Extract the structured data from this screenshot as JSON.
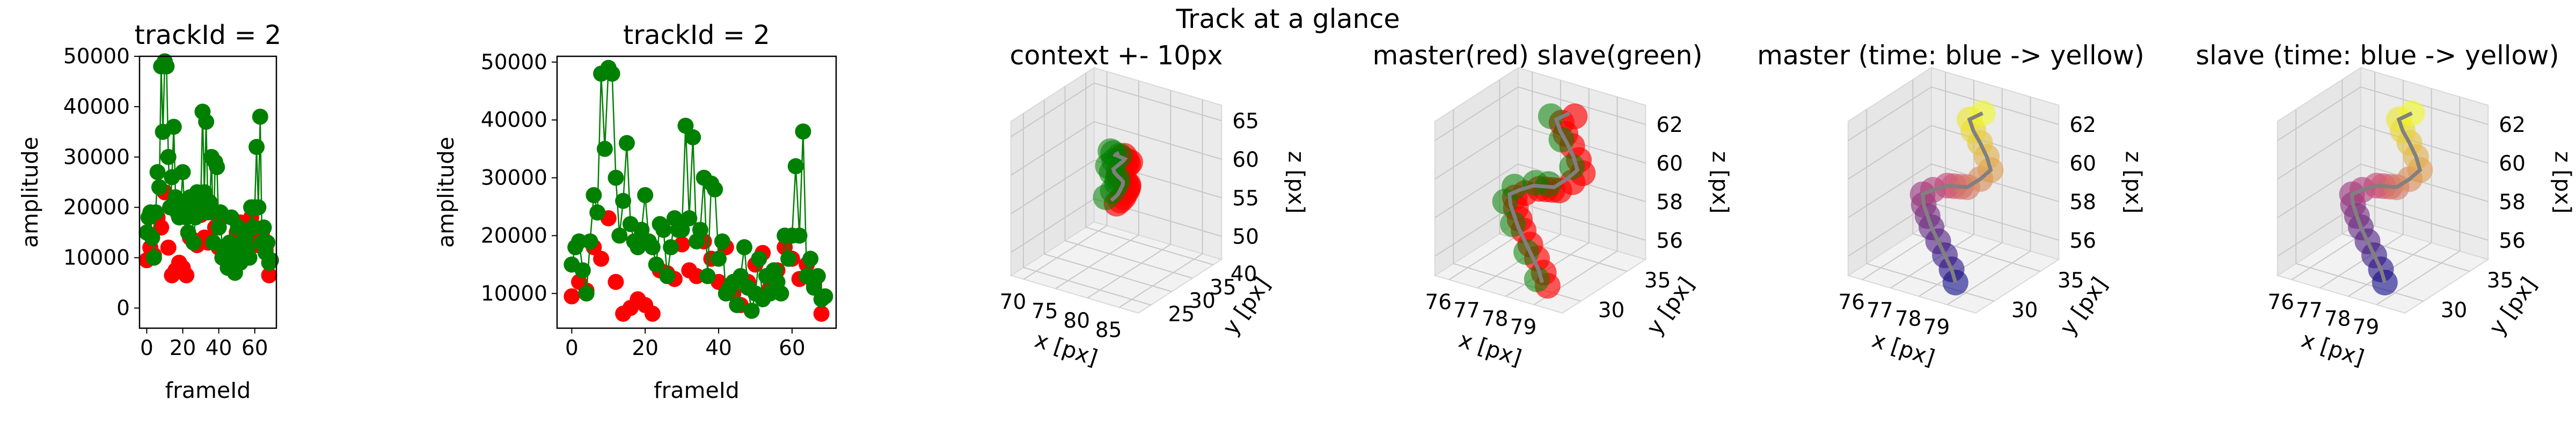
{
  "suptitle": "Track at a glance",
  "colors": {
    "master": "#ff0000",
    "slave": "#008000",
    "track_line": "#808080",
    "time_start": "#0d0887",
    "time_mid": "#cc4778",
    "time_end": "#f0f921"
  },
  "chart_data": [
    {
      "type": "scatter",
      "title": "trackId = 2",
      "xlabel": "frameId",
      "ylabel": "amplitude",
      "xlim": [
        -4,
        72
      ],
      "ylim": [
        -4000,
        50000
      ],
      "xticks": [
        0,
        20,
        40,
        60
      ],
      "yticks": [
        0,
        10000,
        20000,
        30000,
        40000,
        50000
      ],
      "grid": false,
      "series": [
        {
          "color": "#ff0000",
          "line": false,
          "x": [
            0,
            2,
            4,
            6,
            8,
            10,
            12,
            14,
            16,
            18,
            20,
            22,
            24,
            26,
            28,
            30,
            32,
            34,
            36,
            38,
            40,
            42,
            44,
            46,
            48,
            50,
            52,
            54,
            56,
            58,
            60,
            62,
            64,
            66,
            68
          ],
          "y": [
            9500,
            12000,
            10500,
            18000,
            16000,
            23000,
            12000,
            6500,
            7500,
            9000,
            8000,
            6500,
            14000,
            13500,
            12500,
            18500,
            14000,
            13000,
            19000,
            16000,
            12000,
            18000,
            10000,
            8000,
            12000,
            15000,
            17000,
            11000,
            14000,
            18000,
            16000,
            12500,
            15000,
            11500,
            6500
          ]
        },
        {
          "color": "#008000",
          "line": true,
          "x": [
            0,
            1,
            2,
            3,
            4,
            5,
            6,
            7,
            8,
            9,
            10,
            11,
            12,
            13,
            14,
            15,
            16,
            17,
            18,
            19,
            20,
            21,
            22,
            23,
            24,
            25,
            26,
            27,
            28,
            29,
            30,
            31,
            32,
            33,
            34,
            35,
            36,
            37,
            38,
            39,
            40,
            41,
            42,
            43,
            44,
            45,
            46,
            47,
            48,
            49,
            50,
            51,
            52,
            53,
            54,
            55,
            56,
            57,
            58,
            59,
            60,
            61,
            62,
            63,
            64,
            65,
            66,
            67,
            68,
            69
          ],
          "y": [
            15000,
            18000,
            19000,
            14000,
            10000,
            19000,
            27000,
            24000,
            48000,
            35000,
            49000,
            48000,
            30000,
            20000,
            26000,
            36000,
            22000,
            19000,
            18000,
            21000,
            27000,
            19000,
            18000,
            15000,
            22000,
            21000,
            13000,
            18000,
            23000,
            21000,
            21000,
            39000,
            23000,
            37000,
            19000,
            21000,
            30000,
            13000,
            29000,
            28000,
            16000,
            19000,
            10000,
            11000,
            12000,
            8000,
            13000,
            18000,
            11000,
            7000,
            10000,
            16000,
            9000,
            13000,
            10000,
            14000,
            12000,
            10000,
            20000,
            16000,
            20000,
            32000,
            20000,
            38000,
            13000,
            16000,
            11000,
            13000,
            9000,
            9500
          ]
        }
      ]
    },
    {
      "type": "scatter",
      "title": "trackId = 2",
      "xlabel": "frameId",
      "ylabel": "amplitude",
      "xlim": [
        -4,
        72
      ],
      "ylim": [
        4000,
        51000
      ],
      "xticks": [
        0,
        20,
        40,
        60
      ],
      "yticks": [
        10000,
        20000,
        30000,
        40000,
        50000
      ],
      "grid": false,
      "series": [
        {
          "color": "#ff0000",
          "line": false,
          "x": [
            0,
            2,
            4,
            6,
            8,
            10,
            12,
            14,
            16,
            18,
            20,
            22,
            24,
            26,
            28,
            30,
            32,
            34,
            36,
            38,
            40,
            42,
            44,
            46,
            48,
            50,
            52,
            54,
            56,
            58,
            60,
            62,
            64,
            66,
            68
          ],
          "y": [
            9500,
            12000,
            10500,
            18000,
            16000,
            23000,
            12000,
            6500,
            7500,
            9000,
            8000,
            6500,
            14000,
            13500,
            12500,
            18500,
            14000,
            13000,
            19000,
            16000,
            12000,
            18000,
            10000,
            8000,
            12000,
            15000,
            17000,
            11000,
            14000,
            18000,
            16000,
            12500,
            15000,
            11500,
            6500
          ]
        },
        {
          "color": "#008000",
          "line": true,
          "x": [
            0,
            1,
            2,
            3,
            4,
            5,
            6,
            7,
            8,
            9,
            10,
            11,
            12,
            13,
            14,
            15,
            16,
            17,
            18,
            19,
            20,
            21,
            22,
            23,
            24,
            25,
            26,
            27,
            28,
            29,
            30,
            31,
            32,
            33,
            34,
            35,
            36,
            37,
            38,
            39,
            40,
            41,
            42,
            43,
            44,
            45,
            46,
            47,
            48,
            49,
            50,
            51,
            52,
            53,
            54,
            55,
            56,
            57,
            58,
            59,
            60,
            61,
            62,
            63,
            64,
            65,
            66,
            67,
            68,
            69
          ],
          "y": [
            15000,
            18000,
            19000,
            14000,
            10000,
            19000,
            27000,
            24000,
            48000,
            35000,
            49000,
            48000,
            30000,
            20000,
            26000,
            36000,
            22000,
            19000,
            18000,
            21000,
            27000,
            19000,
            18000,
            15000,
            22000,
            21000,
            13000,
            18000,
            23000,
            21000,
            21000,
            39000,
            23000,
            37000,
            19000,
            21000,
            30000,
            13000,
            29000,
            28000,
            16000,
            19000,
            10000,
            11000,
            12000,
            8000,
            13000,
            18000,
            11000,
            7000,
            10000,
            16000,
            9000,
            13000,
            10000,
            14000,
            12000,
            10000,
            20000,
            16000,
            20000,
            32000,
            20000,
            38000,
            13000,
            16000,
            11000,
            13000,
            9000,
            9500
          ]
        }
      ]
    },
    {
      "type": "scatter",
      "title": "context +- 10px",
      "xlabel": "x [px]",
      "ylabel": "y [px]",
      "zlabel": "z [px]",
      "xlim": [
        68,
        88
      ],
      "ylim": [
        22,
        42
      ],
      "zlim": [
        47,
        67
      ],
      "xticks": [
        70,
        75,
        80,
        85
      ],
      "yticks": [
        25,
        30,
        35,
        40
      ],
      "zticks": [
        50,
        55,
        60,
        65
      ],
      "grid": true,
      "color_mode": "master_slave",
      "track": {
        "x": [
          77.2,
          77.6,
          77.9,
          78.1,
          78.3,
          78.6,
          78.8,
          78.5,
          78.2,
          77.9,
          77.6,
          77.9,
          78.2,
          78.5,
          78.7,
          78.4,
          78.1,
          77.8,
          78.0,
          78.3
        ],
        "y": [
          32.0,
          32.3,
          32.6,
          32.8,
          33.0,
          32.7,
          32.4,
          32.2,
          31.9,
          31.7,
          31.9,
          32.2,
          32.5,
          32.8,
          33.0,
          32.7,
          32.4,
          32.1,
          31.9,
          32.2
        ],
        "z": [
          55.5,
          55.9,
          56.3,
          56.8,
          57.3,
          57.8,
          58.2,
          58.6,
          59.0,
          59.4,
          59.7,
          60.0,
          60.3,
          60.6,
          60.9,
          61.1,
          61.3,
          61.5,
          61.7,
          61.9
        ]
      }
    },
    {
      "type": "scatter",
      "title": "master(red) slave(green)",
      "xlabel": "x [px]",
      "ylabel": "y [px]",
      "zlabel": "z [px]",
      "xlim": [
        75.5,
        80
      ],
      "ylim": [
        28,
        37
      ],
      "zlim": [
        55,
        63
      ],
      "xticks": [
        76,
        77,
        78,
        79
      ],
      "yticks": [
        30,
        35
      ],
      "zticks": [
        56,
        58,
        60,
        62
      ],
      "grid": true,
      "color_mode": "master_slave",
      "track": {
        "x": [
          78.8,
          78.5,
          78.1,
          77.7,
          77.3,
          77.0,
          76.7,
          76.5,
          76.8,
          77.2,
          77.6,
          78.0,
          78.4,
          78.7,
          78.9,
          78.6,
          78.2,
          77.8,
          77.5,
          77.8
        ],
        "y": [
          29.5,
          30.0,
          30.5,
          31.0,
          31.5,
          32.0,
          32.5,
          33.0,
          33.2,
          33.5,
          33.0,
          32.5,
          32.0,
          32.5,
          33.0,
          33.5,
          34.0,
          34.5,
          35.0,
          35.5
        ],
        "z": [
          55.6,
          56.0,
          56.4,
          56.8,
          57.2,
          57.5,
          57.8,
          58.1,
          58.4,
          58.7,
          59.0,
          59.3,
          59.6,
          60.0,
          60.4,
          60.8,
          61.2,
          61.5,
          61.8,
          62.1
        ]
      }
    },
    {
      "type": "scatter",
      "title": "master (time: blue -> yellow)",
      "xlabel": "x [px]",
      "ylabel": "y [px]",
      "zlabel": "z [px]",
      "xlim": [
        75.5,
        80
      ],
      "ylim": [
        28,
        37
      ],
      "zlim": [
        55,
        63
      ],
      "xticks": [
        76,
        77,
        78,
        79
      ],
      "yticks": [
        30,
        35
      ],
      "zticks": [
        56,
        58,
        60,
        62
      ],
      "grid": true,
      "color_mode": "time",
      "track": {
        "x": [
          78.8,
          78.5,
          78.1,
          77.7,
          77.3,
          77.0,
          76.7,
          76.5,
          76.8,
          77.2,
          77.6,
          78.0,
          78.4,
          78.7,
          78.9,
          78.6,
          78.2,
          77.8,
          77.5,
          77.8
        ],
        "y": [
          29.5,
          30.0,
          30.5,
          31.0,
          31.5,
          32.0,
          32.5,
          33.0,
          33.2,
          33.5,
          33.0,
          32.5,
          32.0,
          32.5,
          33.0,
          33.5,
          34.0,
          34.5,
          35.0,
          35.5
        ],
        "z": [
          55.6,
          56.0,
          56.4,
          56.8,
          57.2,
          57.5,
          57.8,
          58.1,
          58.4,
          58.7,
          59.0,
          59.3,
          59.6,
          60.0,
          60.4,
          60.8,
          61.2,
          61.5,
          61.8,
          62.1
        ]
      }
    },
    {
      "type": "scatter",
      "title": "slave (time: blue -> yellow)",
      "xlabel": "x [px]",
      "ylabel": "y [px]",
      "zlabel": "z [px]",
      "xlim": [
        75.5,
        80
      ],
      "ylim": [
        28,
        37
      ],
      "zlim": [
        55,
        63
      ],
      "xticks": [
        76,
        77,
        78,
        79
      ],
      "yticks": [
        30,
        35
      ],
      "zticks": [
        56,
        58,
        60,
        62
      ],
      "grid": true,
      "color_mode": "time",
      "track": {
        "x": [
          78.8,
          78.5,
          78.1,
          77.7,
          77.3,
          77.0,
          76.7,
          76.5,
          76.8,
          77.2,
          77.6,
          78.0,
          78.4,
          78.7,
          78.9,
          78.6,
          78.2,
          77.8,
          77.5,
          77.8
        ],
        "y": [
          29.5,
          30.0,
          30.5,
          31.0,
          31.5,
          32.0,
          32.5,
          33.0,
          33.2,
          33.5,
          33.0,
          32.5,
          32.0,
          32.5,
          33.0,
          33.5,
          34.0,
          34.5,
          35.0,
          35.5
        ],
        "z": [
          55.6,
          56.0,
          56.4,
          56.8,
          57.2,
          57.5,
          57.8,
          58.1,
          58.4,
          58.7,
          59.0,
          59.3,
          59.6,
          60.0,
          60.4,
          60.8,
          61.2,
          61.5,
          61.8,
          62.1
        ]
      }
    }
  ]
}
